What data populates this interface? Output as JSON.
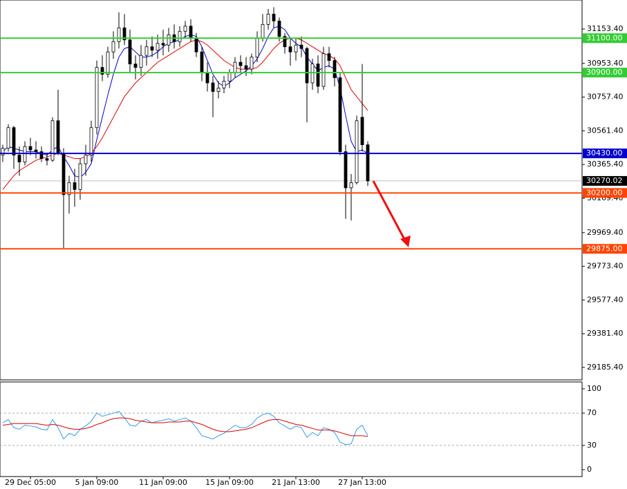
{
  "chart_data": [
    {
      "type": "candlestick",
      "categories": [
        null,
        null,
        null,
        null,
        null,
        "29 Dec 05:00",
        null,
        null,
        null,
        null,
        null,
        null,
        null,
        null,
        null,
        null,
        null,
        "5 Jan 09:00",
        null,
        null,
        null,
        null,
        null,
        null,
        null,
        null,
        null,
        null,
        null,
        "11 Jan 09:00",
        null,
        null,
        null,
        null,
        null,
        null,
        null,
        null,
        null,
        null,
        null,
        "15 Jan 09:00",
        null,
        null,
        null,
        null,
        null,
        null,
        null,
        null,
        null,
        null,
        null,
        "21 Jan 13:00",
        null,
        null,
        null,
        null,
        null,
        null,
        null,
        null,
        null,
        null,
        null,
        "27 Jan 13:00",
        null
      ],
      "open": [
        30420,
        30460,
        30580,
        30420,
        30380,
        30470,
        30450,
        30440,
        30400,
        30390,
        30620,
        30430,
        30190,
        30260,
        30220,
        30370,
        30420,
        30580,
        30930,
        30890,
        31020,
        31080,
        31160,
        31090,
        30950,
        30930,
        31000,
        31050,
        31030,
        31070,
        31060,
        31120,
        31080,
        31140,
        31170,
        31100,
        31020,
        30900,
        30840,
        30790,
        30810,
        30850,
        30900,
        30960,
        30940,
        30920,
        30990,
        31100,
        31180,
        31240,
        31200,
        31110,
        31050,
        31020,
        31060,
        31040,
        30840,
        30950,
        30820,
        31010,
        30970,
        30870,
        30440,
        30230,
        30260,
        30640,
        30480
      ],
      "high": [
        30480,
        30600,
        30590,
        30470,
        30500,
        30520,
        30500,
        30470,
        30430,
        30640,
        30800,
        30460,
        30300,
        30340,
        30400,
        30480,
        30620,
        30970,
        31000,
        31050,
        31140,
        31250,
        31240,
        31150,
        31000,
        31060,
        31090,
        31110,
        31120,
        31150,
        31160,
        31180,
        31170,
        31200,
        31210,
        31130,
        31050,
        30960,
        30880,
        30850,
        30880,
        30920,
        30990,
        31000,
        30990,
        31010,
        31140,
        31240,
        31270,
        31280,
        31220,
        31130,
        31100,
        31100,
        31110,
        31050,
        30980,
        31000,
        31050,
        31050,
        30990,
        30900,
        30480,
        30310,
        30650,
        30950,
        30500
      ],
      "low": [
        30380,
        30440,
        30340,
        30300,
        30360,
        30420,
        30400,
        30380,
        30360,
        30380,
        30420,
        29880,
        30080,
        30120,
        30160,
        30300,
        30380,
        30540,
        30850,
        30870,
        30980,
        31040,
        31060,
        30900,
        30860,
        30880,
        30940,
        30990,
        30980,
        31000,
        31020,
        31040,
        31050,
        31100,
        31080,
        30990,
        30850,
        30790,
        30640,
        30750,
        30780,
        30810,
        30870,
        30900,
        30880,
        30890,
        30960,
        31080,
        31150,
        31160,
        31080,
        31010,
        30940,
        30970,
        30990,
        30610,
        30800,
        30780,
        30800,
        30930,
        30820,
        30420,
        30050,
        30040,
        30250,
        30440,
        30240
      ],
      "close": [
        30460,
        30580,
        30420,
        30380,
        30470,
        30450,
        30440,
        30400,
        30390,
        30620,
        30430,
        30190,
        30260,
        30220,
        30370,
        30420,
        30580,
        30930,
        30890,
        31020,
        31080,
        31160,
        31090,
        30950,
        30930,
        31000,
        31050,
        31030,
        31070,
        31060,
        31120,
        31080,
        31140,
        31170,
        31100,
        31020,
        30900,
        30840,
        30790,
        30810,
        30850,
        30900,
        30960,
        30940,
        30920,
        30990,
        31100,
        31180,
        31240,
        31200,
        31110,
        31050,
        31020,
        31060,
        31040,
        30840,
        30950,
        30820,
        31010,
        30970,
        30870,
        30440,
        30230,
        30260,
        30620,
        30480,
        30270
      ],
      "lines": [
        {
          "color": "#0000cc",
          "values": [
            30440,
            30470,
            30460,
            30450,
            30440,
            30440,
            30440,
            30430,
            30420,
            30450,
            30470,
            30410,
            30360,
            30300,
            30290,
            30320,
            30370,
            30510,
            30640,
            30770,
            30890,
            30990,
            31040,
            31050,
            31020,
            30990,
            30990,
            31000,
            31020,
            31050,
            31070,
            31080,
            31090,
            31110,
            31120,
            31110,
            31050,
            30970,
            30890,
            30840,
            30820,
            30840,
            30870,
            30890,
            30910,
            30940,
            30980,
            31040,
            31110,
            31160,
            31170,
            31150,
            31100,
            31070,
            31050,
            30990,
            30950,
            30910,
            30930,
            30940,
            30920,
            30810,
            30650,
            30500,
            30440,
            30450,
            30430
          ]
        },
        {
          "color": "#dd0000",
          "values": [
            30220,
            30260,
            30300,
            30330,
            30350,
            30370,
            30390,
            30400,
            30410,
            30420,
            30430,
            30420,
            30410,
            30400,
            30400,
            30410,
            30430,
            30470,
            30520,
            30580,
            30640,
            30700,
            30760,
            30800,
            30840,
            30870,
            30900,
            30930,
            30960,
            30980,
            31000,
            31020,
            31040,
            31060,
            31080,
            31090,
            31080,
            31060,
            31030,
            31000,
            30970,
            30950,
            30930,
            30920,
            30920,
            30920,
            30930,
            30960,
            31000,
            31040,
            31070,
            31090,
            31100,
            31100,
            31090,
            31070,
            31050,
            31030,
            31010,
            31000,
            30980,
            30940,
            30870,
            30800,
            30760,
            30720,
            30680
          ]
        }
      ],
      "levels": [
        {
          "value": 31100,
          "label": "31100.00",
          "color": "#33cc33"
        },
        {
          "value": 30900,
          "label": "30900.00",
          "color": "#33cc33"
        },
        {
          "value": 30430,
          "label": "30430.00",
          "color": "#0000cc"
        },
        {
          "value": 30200,
          "label": "30200.00",
          "color": "#ff4400"
        },
        {
          "value": 29875,
          "label": "29875.00",
          "color": "#ff4400"
        }
      ],
      "current": {
        "value": 30270.02,
        "label": "30270.02"
      },
      "ylim": [
        29113,
        31322
      ],
      "yticks": [
        {
          "value": 31153.4,
          "label": "31153.40"
        },
        {
          "value": 30953.4,
          "label": "30953.40"
        },
        {
          "value": 30757.4,
          "label": "30757.40"
        },
        {
          "value": 30561.4,
          "label": "30561.40"
        },
        {
          "value": 30365.4,
          "label": "30365.40"
        },
        {
          "value": 30169.4,
          "label": "30169.40"
        },
        {
          "value": 29969.4,
          "label": "29969.40"
        },
        {
          "value": 29773.4,
          "label": "29773.40"
        },
        {
          "value": 29577.4,
          "label": "29577.40"
        },
        {
          "value": 29381.4,
          "label": "29381.40"
        },
        {
          "value": 29185.4,
          "label": "29185.40"
        }
      ]
    },
    {
      "type": "line",
      "series": [
        {
          "color": "#3399ee",
          "values": [
            58,
            62,
            52,
            50,
            55,
            54,
            53,
            50,
            49,
            62,
            52,
            38,
            45,
            42,
            50,
            54,
            60,
            70,
            66,
            68,
            70,
            72,
            64,
            55,
            54,
            60,
            62,
            58,
            60,
            61,
            63,
            60,
            62,
            64,
            60,
            52,
            42,
            40,
            38,
            42,
            45,
            50,
            55,
            52,
            52,
            56,
            64,
            68,
            70,
            66,
            58,
            54,
            50,
            54,
            52,
            40,
            46,
            42,
            52,
            50,
            46,
            34,
            31,
            32,
            50,
            55,
            42
          ]
        },
        {
          "color": "#dd0000",
          "values": [
            55,
            56,
            57,
            57,
            57,
            57,
            57,
            56,
            55,
            56,
            55,
            53,
            51,
            50,
            50,
            51,
            53,
            56,
            58,
            61,
            63,
            64,
            64,
            63,
            61,
            60,
            59,
            58,
            58,
            58,
            59,
            59,
            59,
            60,
            60,
            58,
            56,
            53,
            50,
            48,
            47,
            47,
            48,
            49,
            50,
            52,
            55,
            58,
            61,
            62,
            62,
            60,
            58,
            56,
            55,
            53,
            51,
            49,
            49,
            49,
            48,
            46,
            44,
            42,
            42,
            42,
            41
          ]
        }
      ],
      "ylim": [
        -8.5,
        108.5
      ],
      "yticks": [
        0,
        30,
        70,
        100
      ],
      "dashed": [
        30,
        70
      ]
    }
  ]
}
